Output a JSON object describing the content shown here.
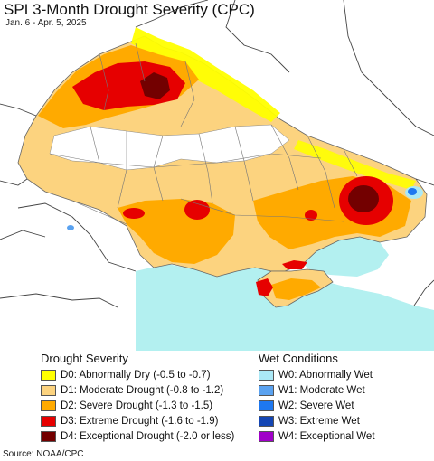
{
  "map": {
    "title": "SPI 3-Month Drought Severity (CPC)",
    "subtitle": "Jan. 6 - Apr. 5, 2025",
    "colors": {
      "background": "#ffffff",
      "sea": "#b3f0f0",
      "D0": "#ffff00",
      "D1": "#fcd37f",
      "D2": "#ffaa00",
      "D3": "#e60000",
      "D4": "#730000",
      "W0": "#aae8f6",
      "W1": "#5aa2f0",
      "W2": "#1e78f0",
      "W3": "#1446b4",
      "W4": "#a000c8"
    }
  },
  "legend": {
    "drought_title": "Drought Severity",
    "drought_items": [
      {
        "label": "D0: Abnormally Dry (-0.5 to -0.7)",
        "color": "#ffff00"
      },
      {
        "label": "D1: Moderate Drought (-0.8 to -1.2)",
        "color": "#fcd37f"
      },
      {
        "label": "D2: Severe Drought (-1.3 to -1.5)",
        "color": "#ffaa00"
      },
      {
        "label": "D3: Extreme Drought (-1.6 to -1.9)",
        "color": "#e60000"
      },
      {
        "label": "D4: Exceptional Drought (-2.0 or less)",
        "color": "#730000"
      }
    ],
    "wet_title": "Wet Conditions",
    "wet_items": [
      {
        "label": "W0: Abnormally Wet",
        "color": "#aae8f6"
      },
      {
        "label": "W1: Moderate Wet",
        "color": "#5aa2f0"
      },
      {
        "label": "W2: Severe Wet",
        "color": "#1e78f0"
      },
      {
        "label": "W3: Extreme Wet",
        "color": "#1446b4"
      },
      {
        "label": "W4: Exceptional Wet",
        "color": "#a000c8"
      }
    ]
  },
  "source": "Source: NOAA/CPC"
}
